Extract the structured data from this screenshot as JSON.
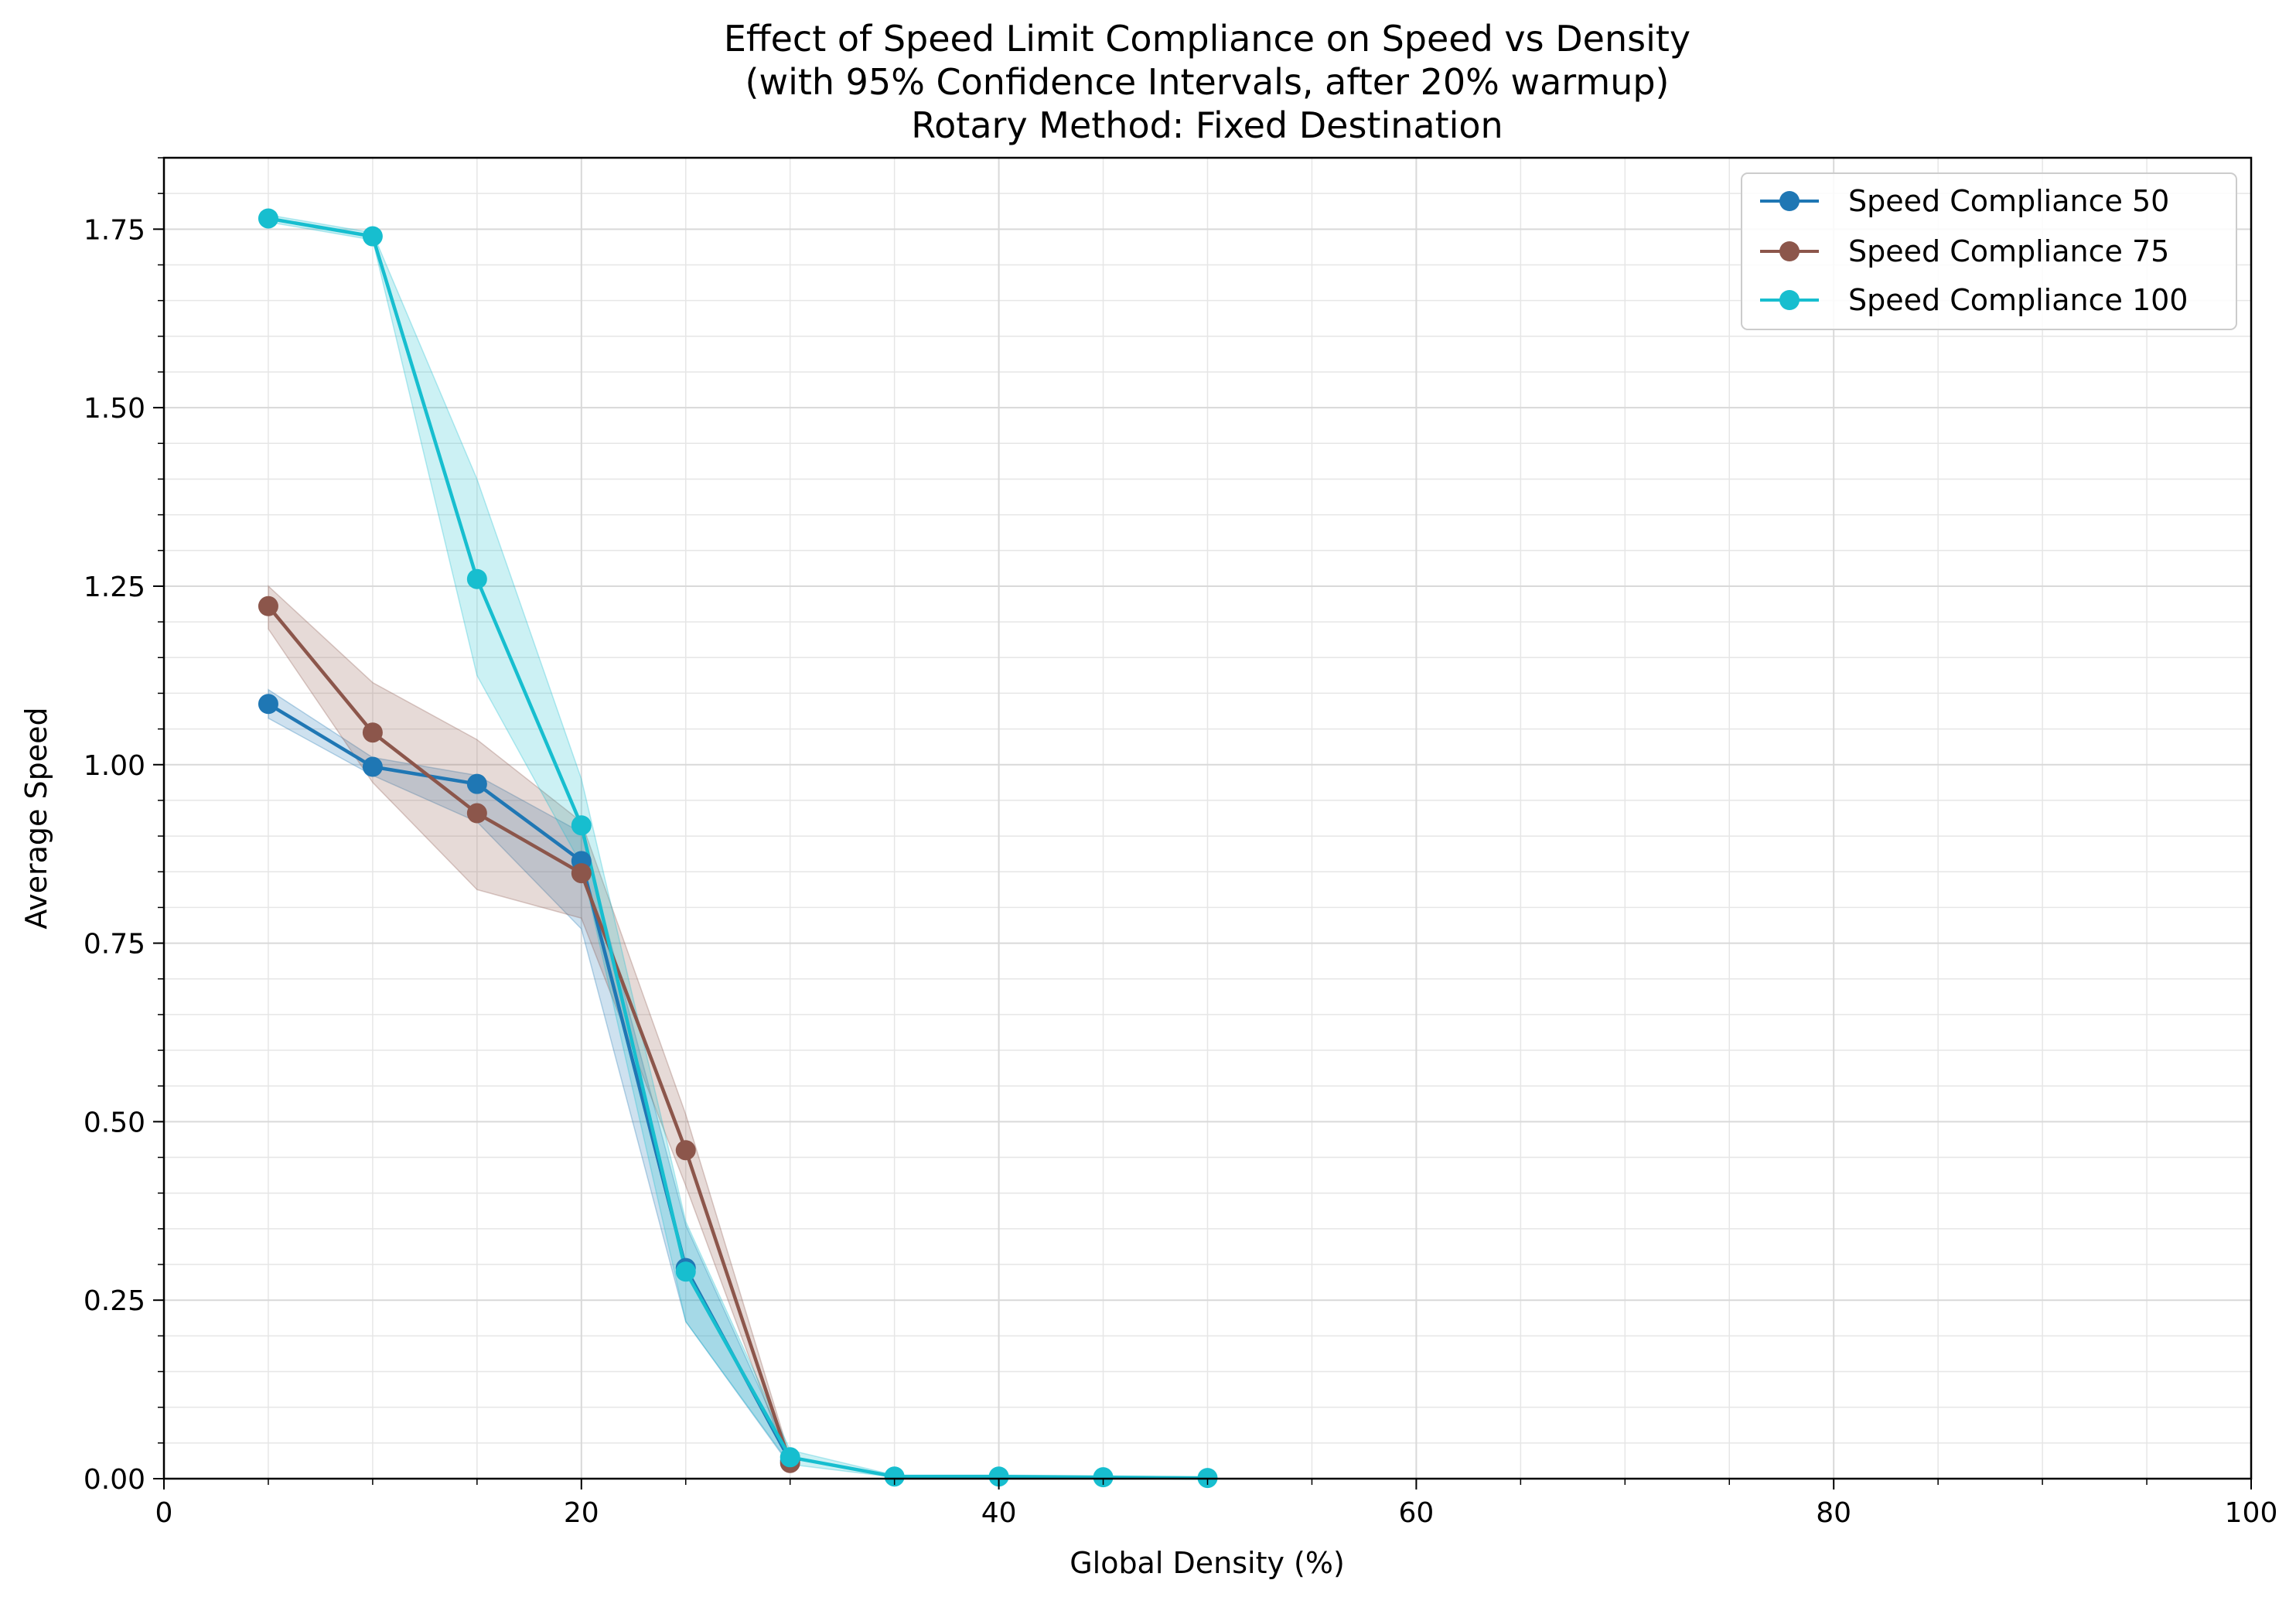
{
  "chart_data": {
    "type": "line",
    "title": [
      "Effect of Speed Limit Compliance on Speed vs Density",
      "(with 95% Confidence Intervals, after 20% warmup)",
      "Rotary Method: Fixed Destination"
    ],
    "xlabel": "Global Density (%)",
    "ylabel": "Average Speed",
    "xlim": [
      0,
      100
    ],
    "ylim": [
      0,
      1.85
    ],
    "xticks": [
      0,
      20,
      40,
      60,
      80,
      100
    ],
    "xtick_labels": [
      "0",
      "20",
      "40",
      "60",
      "80",
      "100"
    ],
    "yticks": [
      0,
      0.25,
      0.5,
      0.75,
      1.0,
      1.25,
      1.5,
      1.75
    ],
    "ytick_labels": [
      "0.00",
      "0.25",
      "0.50",
      "0.75",
      "1.00",
      "1.25",
      "1.50",
      "1.75"
    ],
    "x_minor_step": 5,
    "y_minor_step": 0.05,
    "grid": true,
    "legend_position": "top-right",
    "series": [
      {
        "name": "Speed Compliance 50",
        "color": "#1f77b4",
        "x": [
          5,
          10,
          15,
          20,
          25,
          30
        ],
        "y": [
          1.085,
          0.997,
          0.973,
          0.865,
          0.295,
          0.025
        ],
        "ci_lower": [
          1.065,
          0.985,
          0.92,
          0.77,
          0.22,
          0.018
        ],
        "ci_upper": [
          1.105,
          1.01,
          0.985,
          0.905,
          0.355,
          0.032
        ]
      },
      {
        "name": "Speed Compliance 75",
        "color": "#8c564b",
        "x": [
          5,
          10,
          15,
          20,
          25,
          30
        ],
        "y": [
          1.222,
          1.045,
          0.932,
          0.848,
          0.46,
          0.022
        ],
        "ci_lower": [
          1.19,
          0.975,
          0.825,
          0.785,
          0.41,
          0.015
        ],
        "ci_upper": [
          1.25,
          1.115,
          1.035,
          0.92,
          0.51,
          0.03
        ]
      },
      {
        "name": "Speed Compliance 100",
        "color": "#17becf",
        "x": [
          5,
          10,
          15,
          20,
          25,
          30,
          35,
          40,
          45,
          50
        ],
        "y": [
          1.765,
          1.74,
          1.26,
          0.915,
          0.29,
          0.03,
          0.003,
          0.003,
          0.002,
          0.001
        ],
        "ci_lower": [
          1.76,
          1.735,
          1.125,
          0.86,
          0.22,
          0.02,
          0.002,
          0.002,
          0.001,
          0.0
        ],
        "ci_upper": [
          1.77,
          1.745,
          1.4,
          0.98,
          0.36,
          0.04,
          0.005,
          0.005,
          0.004,
          0.002
        ]
      }
    ]
  }
}
